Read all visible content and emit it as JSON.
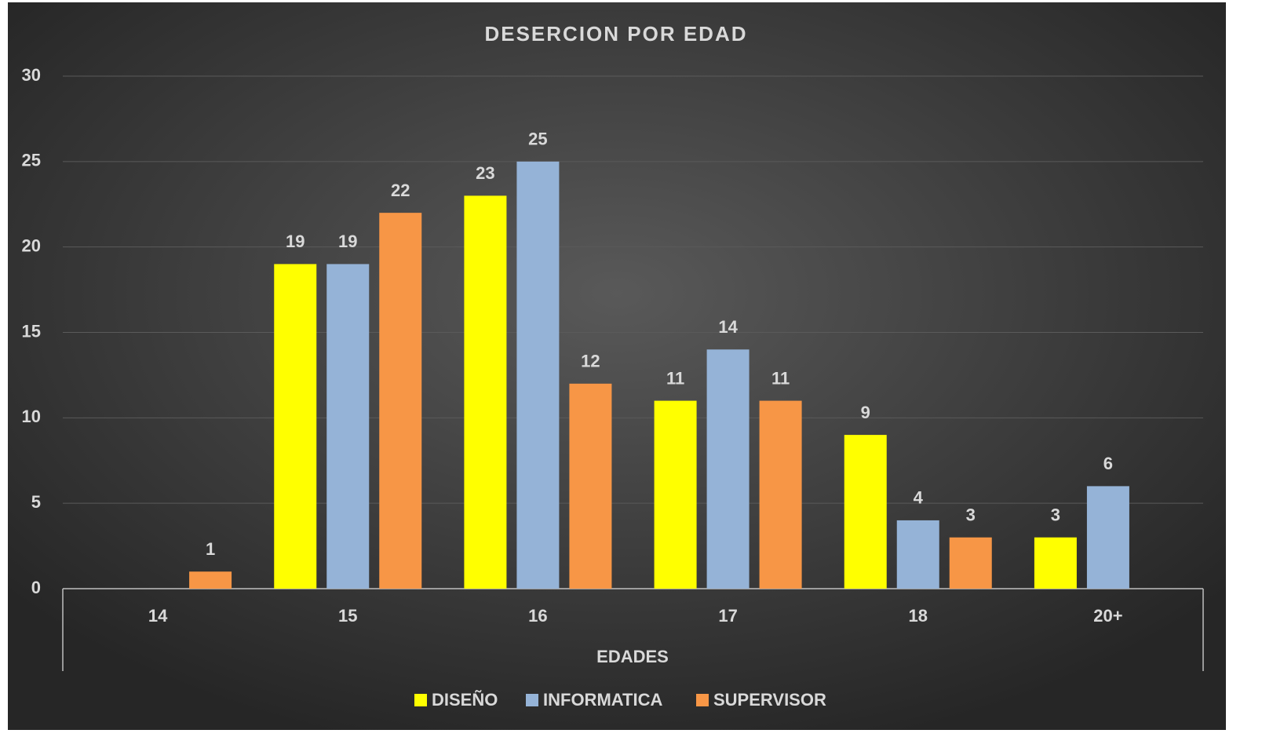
{
  "chart_data": {
    "type": "bar",
    "title": "DESERCION POR EDAD",
    "x_label": "EDADES",
    "categories": [
      "14",
      "15",
      "16",
      "17",
      "18",
      "20+"
    ],
    "series": [
      {
        "name": "DISEÑO",
        "color": "#ffff00",
        "values": [
          null,
          19,
          23,
          11,
          9,
          3
        ]
      },
      {
        "name": "INFORMATICA",
        "color": "#95b3d7",
        "values": [
          null,
          19,
          25,
          14,
          4,
          6
        ]
      },
      {
        "name": "SUPERVISOR",
        "color": "#f79646",
        "values": [
          1,
          22,
          12,
          11,
          3,
          null
        ]
      }
    ],
    "ylim": [
      0,
      30
    ],
    "yticks": [
      0,
      5,
      10,
      15,
      20,
      25,
      30
    ],
    "grid": true,
    "legend": "bottom"
  }
}
